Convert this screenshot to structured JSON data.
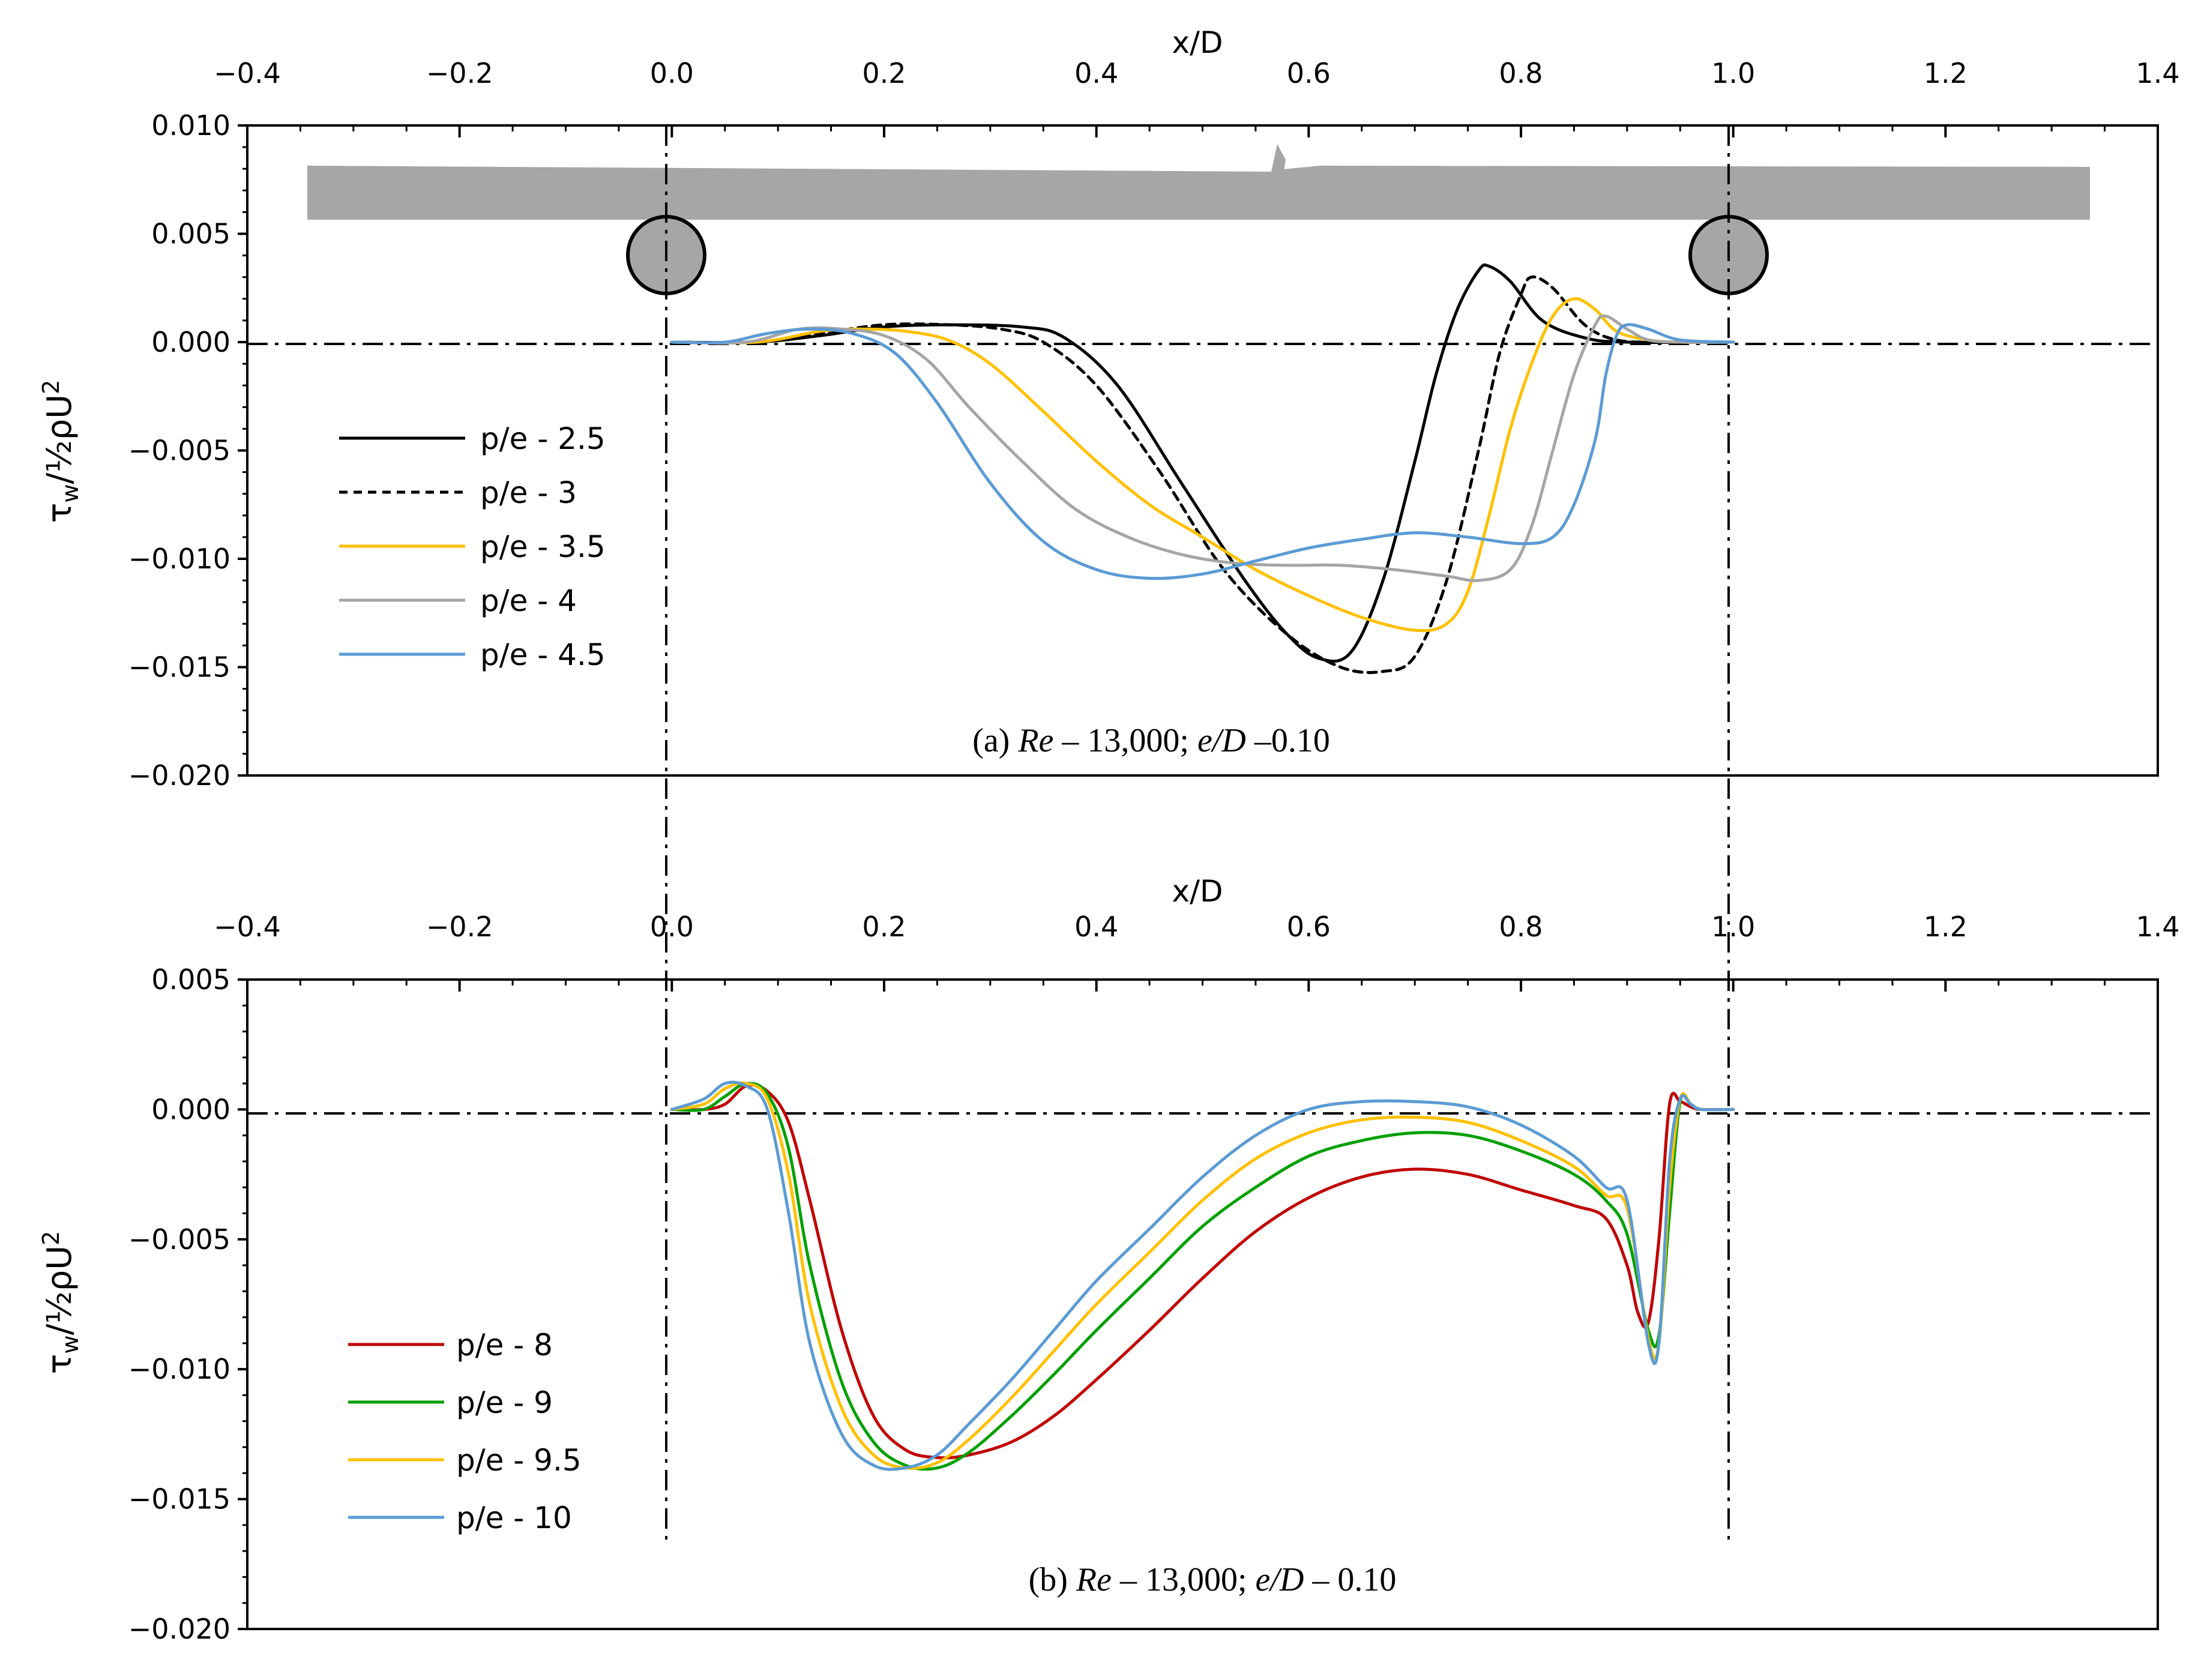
{
  "chart_data": [
    {
      "type": "line",
      "panel": "a",
      "xlabel": "x/D",
      "ylabel": "τw/½ρU2",
      "caption": {
        "label": "(a) ",
        "re": "Re",
        "re_val": " – 13,000; ",
        "ed": "e/D",
        "ed_val": " –0.10"
      },
      "xlim": [
        -0.4,
        1.4
      ],
      "ylim": [
        -0.02,
        0.01
      ],
      "x_ticks": [
        "−0.4",
        "−0.2",
        "0.0",
        "0.2",
        "0.4",
        "0.6",
        "0.8",
        "1.0",
        "1.2",
        "1.4"
      ],
      "y_ticks": [
        "0.010",
        "0.005",
        "0.000",
        "−0.005",
        "−0.010",
        "−0.015",
        "−0.020"
      ],
      "legend_position": "left",
      "series": [
        {
          "name": "p/e - 2.5",
          "color": "#000000",
          "dash": "solid",
          "x": [
            0,
            0.08,
            0.14,
            0.2,
            0.26,
            0.33,
            0.37,
            0.42,
            0.48,
            0.54,
            0.58,
            0.61,
            0.64,
            0.67,
            0.7,
            0.72,
            0.74,
            0.76,
            0.77,
            0.79,
            0.82,
            0.86,
            0.9,
            1.0
          ],
          "y": [
            0,
            0,
            0.0003,
            0.0007,
            0.0008,
            0.0007,
            0.0002,
            -0.002,
            -0.0065,
            -0.011,
            -0.0135,
            -0.0146,
            -0.0143,
            -0.011,
            -0.0055,
            -0.0015,
            0.0015,
            0.0033,
            0.0035,
            0.0028,
            0.001,
            0.0002,
            0,
            0
          ]
        },
        {
          "name": "p/e - 3",
          "color": "#000000",
          "dash": "dashed",
          "x": [
            0,
            0.08,
            0.14,
            0.2,
            0.26,
            0.31,
            0.35,
            0.4,
            0.46,
            0.52,
            0.58,
            0.63,
            0.67,
            0.7,
            0.73,
            0.76,
            0.78,
            0.8,
            0.81,
            0.83,
            0.86,
            0.89,
            0.93,
            1.0
          ],
          "y": [
            0,
            0,
            0.0004,
            0.0008,
            0.0008,
            0.0006,
            0,
            -0.002,
            -0.006,
            -0.0105,
            -0.0135,
            -0.015,
            -0.0152,
            -0.0145,
            -0.011,
            -0.005,
            -0.0005,
            0.0022,
            0.003,
            0.0025,
            0.0008,
            0.0001,
            0,
            0
          ]
        },
        {
          "name": "p/e - 3.5",
          "color": "#FFC000",
          "dash": "solid",
          "x": [
            0,
            0.08,
            0.14,
            0.18,
            0.22,
            0.26,
            0.3,
            0.35,
            0.4,
            0.45,
            0.5,
            0.55,
            0.6,
            0.65,
            0.7,
            0.73,
            0.75,
            0.77,
            0.79,
            0.81,
            0.83,
            0.85,
            0.87,
            0.89,
            0.92,
            0.95,
            1.0
          ],
          "y": [
            0,
            0,
            0.0005,
            0.0006,
            0.0005,
            0.0001,
            -0.001,
            -0.0032,
            -0.0055,
            -0.0075,
            -0.009,
            -0.0105,
            -0.0117,
            -0.0127,
            -0.0133,
            -0.013,
            -0.0115,
            -0.008,
            -0.004,
            -0.001,
            0.0012,
            0.002,
            0.0015,
            0.0005,
            0.0001,
            0,
            0
          ]
        },
        {
          "name": "p/e - 4",
          "color": "#A5A5A5",
          "dash": "solid",
          "x": [
            0,
            0.07,
            0.12,
            0.16,
            0.2,
            0.24,
            0.28,
            0.33,
            0.38,
            0.43,
            0.48,
            0.53,
            0.58,
            0.63,
            0.68,
            0.73,
            0.76,
            0.79,
            0.81,
            0.83,
            0.85,
            0.87,
            0.88,
            0.9,
            0.92,
            0.95,
            1.0
          ],
          "y": [
            0,
            0,
            0.0006,
            0.0006,
            0.0003,
            -0.0008,
            -0.003,
            -0.0055,
            -0.0077,
            -0.009,
            -0.0098,
            -0.0102,
            -0.0103,
            -0.0103,
            -0.0105,
            -0.0108,
            -0.011,
            -0.0105,
            -0.0085,
            -0.005,
            -0.0015,
            0.0008,
            0.0012,
            0.0006,
            0.0001,
            0,
            0
          ]
        },
        {
          "name": "p/e - 4.5",
          "color": "#5B9BD5",
          "dash": "solid",
          "x": [
            0,
            0.05,
            0.09,
            0.13,
            0.17,
            0.21,
            0.25,
            0.3,
            0.35,
            0.4,
            0.45,
            0.5,
            0.55,
            0.6,
            0.65,
            0.7,
            0.75,
            0.8,
            0.83,
            0.85,
            0.87,
            0.88,
            0.89,
            0.9,
            0.92,
            0.95,
            1.0
          ],
          "y": [
            0,
            0,
            0.0004,
            0.0006,
            0.0004,
            -0.0005,
            -0.0028,
            -0.0065,
            -0.0092,
            -0.0105,
            -0.0109,
            -0.0107,
            -0.0101,
            -0.0095,
            -0.0091,
            -0.0088,
            -0.009,
            -0.0093,
            -0.009,
            -0.0075,
            -0.0045,
            -0.0015,
            0.0003,
            0.0008,
            0.0006,
            0.0001,
            0
          ]
        }
      ]
    },
    {
      "type": "line",
      "panel": "b",
      "xlabel": "x/D",
      "ylabel": "τw/½ρU2",
      "caption": {
        "label": "(b) ",
        "re": "Re",
        "re_val": " – 13,000; ",
        "ed": "e/D",
        "ed_val": " – 0.10"
      },
      "xlim": [
        -0.4,
        1.4
      ],
      "ylim": [
        -0.02,
        0.005
      ],
      "x_ticks": [
        "−0.4",
        "−0.2",
        "0.0",
        "0.2",
        "0.4",
        "0.6",
        "0.8",
        "1.0",
        "1.2",
        "1.4"
      ],
      "y_ticks": [
        "0.005",
        "0.000",
        "−0.005",
        "−0.010",
        "−0.015",
        "−0.020"
      ],
      "legend_position": "bottom-left",
      "series": [
        {
          "name": "p/e - 8",
          "color": "#C00000",
          "dash": "solid",
          "x": [
            0,
            0.03,
            0.05,
            0.07,
            0.09,
            0.11,
            0.13,
            0.16,
            0.19,
            0.22,
            0.25,
            0.28,
            0.32,
            0.36,
            0.4,
            0.45,
            0.5,
            0.55,
            0.6,
            0.65,
            0.7,
            0.75,
            0.8,
            0.85,
            0.88,
            0.9,
            0.91,
            0.92,
            0.93,
            0.94,
            0.95,
            0.96,
            0.97,
            1.0
          ],
          "y": [
            0,
            0,
            0.0002,
            0.0009,
            0.0007,
            -0.0005,
            -0.0035,
            -0.0085,
            -0.0118,
            -0.0131,
            -0.0134,
            -0.0133,
            -0.0128,
            -0.0118,
            -0.0104,
            -0.0085,
            -0.0065,
            -0.0047,
            -0.0034,
            -0.0026,
            -0.0023,
            -0.0025,
            -0.0031,
            -0.0037,
            -0.0042,
            -0.006,
            -0.0078,
            -0.0082,
            -0.005,
            0.0002,
            0.0003,
            0.0001,
            0,
            0
          ]
        },
        {
          "name": "p/e - 9",
          "color": "#00A000",
          "dash": "solid",
          "x": [
            0,
            0.03,
            0.05,
            0.07,
            0.09,
            0.11,
            0.13,
            0.16,
            0.19,
            0.22,
            0.25,
            0.28,
            0.32,
            0.36,
            0.4,
            0.45,
            0.5,
            0.55,
            0.6,
            0.65,
            0.7,
            0.75,
            0.8,
            0.85,
            0.88,
            0.9,
            0.92,
            0.93,
            0.94,
            0.95,
            0.96,
            0.97,
            1.0
          ],
          "y": [
            0,
            0,
            0.0005,
            0.001,
            0.0006,
            -0.0015,
            -0.006,
            -0.0105,
            -0.0128,
            -0.0137,
            -0.0138,
            -0.0132,
            -0.0118,
            -0.0102,
            -0.0085,
            -0.0065,
            -0.0045,
            -0.003,
            -0.0018,
            -0.0012,
            -0.0009,
            -0.001,
            -0.0016,
            -0.0025,
            -0.0035,
            -0.0048,
            -0.0085,
            -0.0087,
            -0.004,
            0.0003,
            0.0002,
            0,
            0
          ]
        },
        {
          "name": "p/e - 9.5",
          "color": "#FFC000",
          "dash": "solid",
          "x": [
            0,
            0.03,
            0.05,
            0.07,
            0.09,
            0.11,
            0.13,
            0.16,
            0.19,
            0.22,
            0.25,
            0.28,
            0.32,
            0.36,
            0.4,
            0.45,
            0.5,
            0.55,
            0.6,
            0.65,
            0.7,
            0.75,
            0.8,
            0.85,
            0.88,
            0.9,
            0.92,
            0.93,
            0.94,
            0.95,
            0.96,
            0.97,
            1.0
          ],
          "y": [
            0,
            0.0002,
            0.0008,
            0.001,
            0.0004,
            -0.0025,
            -0.0075,
            -0.0115,
            -0.0133,
            -0.0138,
            -0.0136,
            -0.0127,
            -0.0111,
            -0.0093,
            -0.0075,
            -0.0055,
            -0.0035,
            -0.0019,
            -0.0009,
            -0.0004,
            -0.0003,
            -0.0005,
            -0.0012,
            -0.0022,
            -0.0033,
            -0.0038,
            -0.0088,
            -0.009,
            -0.003,
            0.0004,
            0.0002,
            0,
            0
          ]
        },
        {
          "name": "p/e - 10",
          "color": "#5B9BD5",
          "dash": "solid",
          "x": [
            0,
            0.03,
            0.05,
            0.07,
            0.09,
            0.11,
            0.13,
            0.16,
            0.19,
            0.22,
            0.25,
            0.28,
            0.32,
            0.36,
            0.4,
            0.45,
            0.5,
            0.55,
            0.6,
            0.65,
            0.7,
            0.75,
            0.8,
            0.85,
            0.88,
            0.9,
            0.92,
            0.93,
            0.94,
            0.95,
            0.96,
            0.97,
            1.0
          ],
          "y": [
            0,
            0.0004,
            0.001,
            0.0009,
            0,
            -0.004,
            -0.009,
            -0.0125,
            -0.0137,
            -0.0138,
            -0.0133,
            -0.0121,
            -0.0104,
            -0.0085,
            -0.0066,
            -0.0046,
            -0.0026,
            -0.001,
            0,
            0.0003,
            0.0003,
            0.0001,
            -0.0006,
            -0.0018,
            -0.003,
            -0.0035,
            -0.009,
            -0.009,
            -0.002,
            0.0004,
            0.0002,
            0,
            0
          ]
        }
      ]
    }
  ]
}
